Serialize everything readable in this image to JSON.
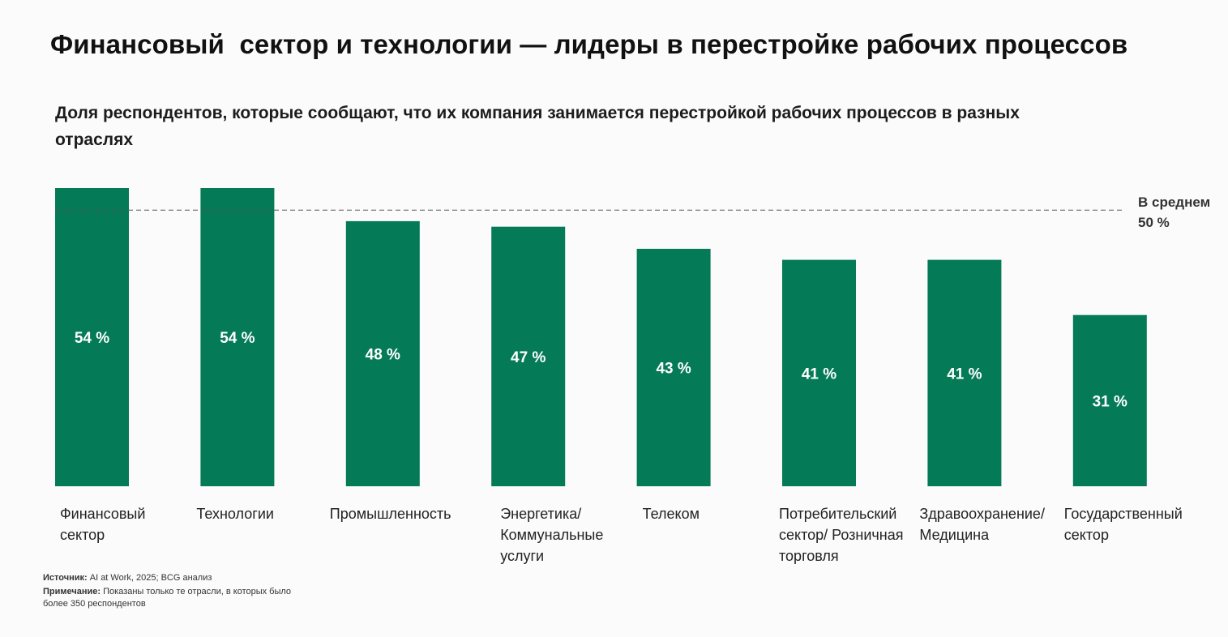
{
  "title": "Финансовый  сектор и технологии — лидеры в перестройке рабочих процессов",
  "subtitle": "Доля респондентов, которые сообщают, что их компания занимается перестройкой рабочих процессов в разных отраслях",
  "average": {
    "label_line1": "В среднем",
    "label_line2": "50 %",
    "value": 50
  },
  "colors": {
    "bar": "#047a56",
    "average_line": "#555555"
  },
  "chart_data": {
    "type": "bar",
    "title": "Доля респондентов, которые сообщают, что их компания занимается перестройкой рабочих процессов в разных отраслях",
    "categories": [
      "Финансовый\n сектор",
      "Технологии",
      "Промышленность",
      "Энергетика/\nКоммунальные\nуслуги",
      "Телеком",
      "Потребительский\nсектор/ Розничная\nторговля",
      "Здравоохранение/\nМедицина",
      "Государственный\nсектор"
    ],
    "values": [
      54,
      54,
      48,
      47,
      43,
      41,
      41,
      31
    ],
    "value_labels": [
      "54 %",
      "54 %",
      "48 %",
      "47 %",
      "43 %",
      "41 %",
      "41 %",
      "31 %"
    ],
    "unit": "%",
    "ylim": [
      0,
      54
    ],
    "reference_line": 50,
    "xlabel": "",
    "ylabel": ""
  },
  "footnotes": {
    "source_label": "Источник:",
    "source_text": " AI at Work, 2025; BCG анализ",
    "note_label": "Примечание:",
    "note_text_line1": " Показаны только те отрасли, в которых было",
    "note_text_line2": "более 350 респондентов"
  }
}
